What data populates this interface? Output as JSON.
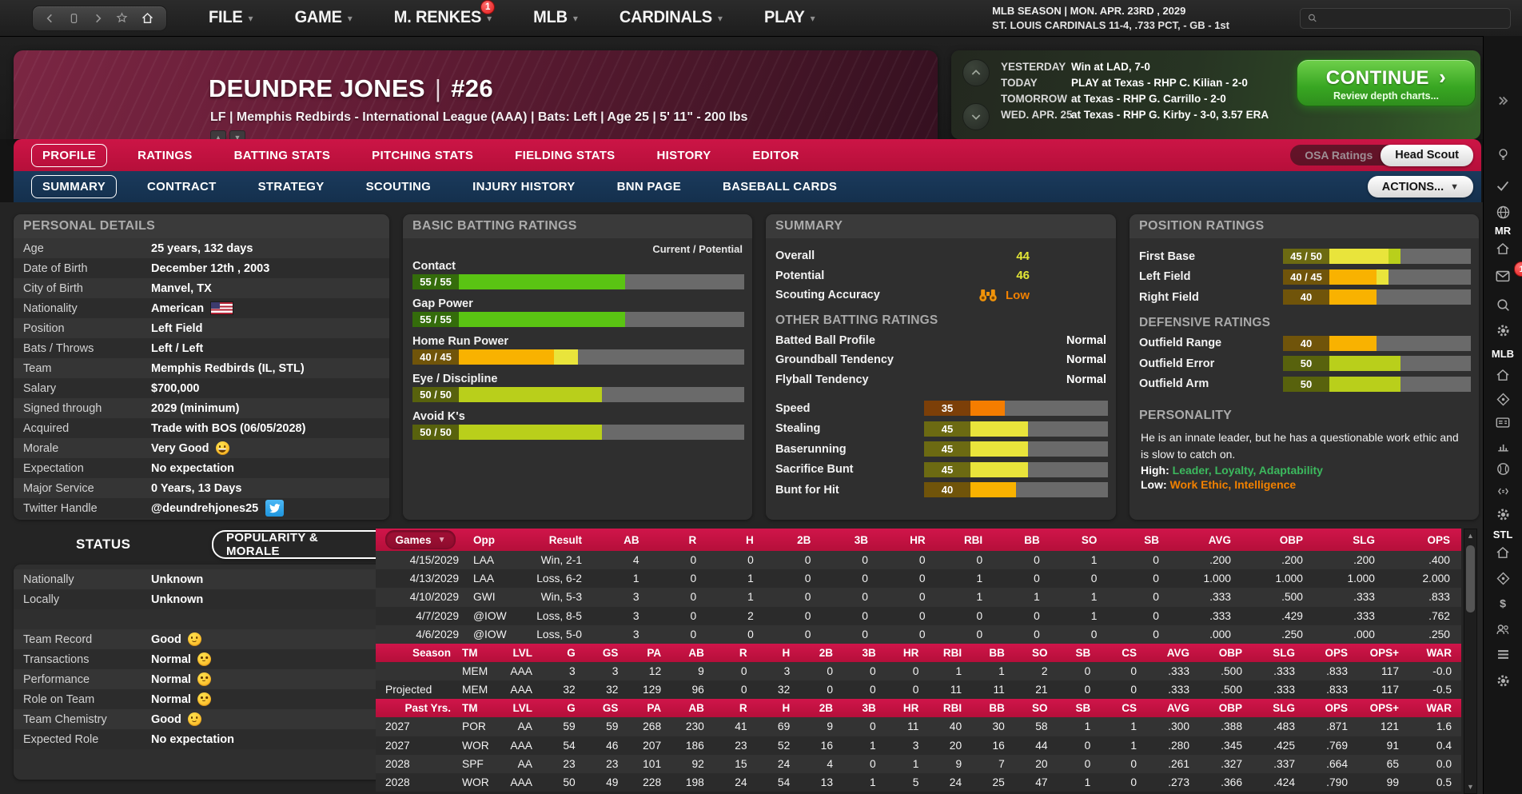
{
  "topbar": {
    "menus": [
      {
        "label": "FILE"
      },
      {
        "label": "GAME"
      },
      {
        "label": "M. RENKES",
        "badge": "1"
      },
      {
        "label": "MLB"
      },
      {
        "label": "CARDINALS"
      },
      {
        "label": "PLAY"
      }
    ],
    "season_line": "MLB SEASON  |  MON. APR. 23RD , 2029",
    "team_line": "ST. LOUIS CARDINALS  11-4, .733 PCT, - GB - 1st"
  },
  "player": {
    "name": "DEUNDRE JONES",
    "separator": "|",
    "number": "#26",
    "details": "LF | Memphis Redbirds - International League (AAA)  |  Bats: Left  |  Age 25  |  5' 11\" - 200 lbs"
  },
  "schedule": {
    "rows": [
      {
        "label": "YESTERDAY",
        "value": "Win at LAD, 7-0"
      },
      {
        "label": "TODAY",
        "value": "PLAY at Texas - RHP C. Kilian - 2-0"
      },
      {
        "label": "TOMORROW",
        "value": "at Texas - RHP G. Carrillo - 2-0"
      },
      {
        "label": "WED. APR. 25",
        "value": "at Texas - RHP G. Kirby - 3-0, 3.57 ERA"
      }
    ],
    "continue_label": "CONTINUE",
    "continue_arrow": "›",
    "continue_sub": "Review depth charts..."
  },
  "tabs_primary": [
    {
      "label": "PROFILE",
      "state": "active"
    },
    {
      "label": "RATINGS"
    },
    {
      "label": "BATTING STATS"
    },
    {
      "label": "PITCHING STATS"
    },
    {
      "label": "FIELDING STATS"
    },
    {
      "label": "HISTORY"
    },
    {
      "label": "EDITOR"
    }
  ],
  "scout_toggle": {
    "osa": "OSA Ratings",
    "head": "Head Scout"
  },
  "tabs_secondary": [
    {
      "label": "SUMMARY",
      "state": "active"
    },
    {
      "label": "CONTRACT"
    },
    {
      "label": "STRATEGY"
    },
    {
      "label": "SCOUTING"
    },
    {
      "label": "INJURY HISTORY"
    },
    {
      "label": "BNN PAGE"
    },
    {
      "label": "BASEBALL CARDS"
    }
  ],
  "actions_label": "ACTIONS...",
  "personal": {
    "title": "PERSONAL DETAILS",
    "rows": [
      {
        "label": "Age",
        "value": "25 years, 132 days",
        "cls": "a"
      },
      {
        "label": "Date of Birth",
        "value": "December 12th , 2003",
        "cls": "b"
      },
      {
        "label": "City of Birth",
        "value": "Manvel, TX",
        "cls": "a"
      },
      {
        "label": "Nationality",
        "value": "American",
        "icon": "us-flag",
        "cls": "b"
      },
      {
        "label": "Position",
        "value": "Left Field",
        "cls": "a"
      },
      {
        "label": "Bats / Throws",
        "value": "Left / Left",
        "cls": "b"
      },
      {
        "label": "Team",
        "value": "Memphis Redbirds (IL, STL)",
        "cls": "a"
      },
      {
        "label": "Salary",
        "value": "$700,000",
        "cls": "b"
      },
      {
        "label": "Signed through",
        "value": "2029 (minimum)",
        "cls": "a"
      },
      {
        "label": "Acquired",
        "value": "Trade with BOS (06/05/2028)",
        "cls": "b"
      },
      {
        "label": "Morale",
        "value": "Very Good",
        "emoji": "grin",
        "cls": "a"
      },
      {
        "label": "Expectation",
        "value": "No expectation",
        "cls": "b"
      },
      {
        "label": "Major Service",
        "value": "0 Years, 13 Days",
        "cls": "a"
      },
      {
        "label": "Twitter Handle",
        "value": "@deundrehjones25",
        "icon": "twitter",
        "cls": "b"
      }
    ]
  },
  "status": {
    "title": "STATUS",
    "popularity_label": "POPULARITY & MORALE",
    "rows": [
      {
        "label": "Nationally",
        "value": "Unknown",
        "cls": "a"
      },
      {
        "label": "Locally",
        "value": "Unknown",
        "cls": "b"
      },
      {
        "label": "",
        "value": "",
        "cls": "sp"
      },
      {
        "label": "Team Record",
        "value": "Good",
        "emoji": "smile",
        "cls": "a"
      },
      {
        "label": "Transactions",
        "value": "Normal",
        "emoji": "slight",
        "cls": "b"
      },
      {
        "label": "Performance",
        "value": "Normal",
        "emoji": "slight",
        "cls": "a"
      },
      {
        "label": "Role on Team",
        "value": "Normal",
        "emoji": "slight",
        "cls": "b"
      },
      {
        "label": "Team Chemistry",
        "value": "Good",
        "emoji": "smile",
        "cls": "a"
      },
      {
        "label": "Expected Role",
        "value": "No expectation",
        "cls": "b"
      }
    ]
  },
  "batting": {
    "title": "BASIC BATTING RATINGS",
    "scale_note": "Current / Potential",
    "items": [
      {
        "label": "Contact",
        "display": "55 / 55",
        "current": 55,
        "potential": 55
      },
      {
        "label": "Gap Power",
        "display": "55 / 55",
        "current": 55,
        "potential": 55
      },
      {
        "label": "Home Run Power",
        "display": "40 / 45",
        "current": 40,
        "potential": 45
      },
      {
        "label": "Eye / Discipline",
        "display": "50 / 50",
        "current": 50,
        "potential": 50
      },
      {
        "label": "Avoid K's",
        "display": "50 / 50",
        "current": 50,
        "potential": 50
      }
    ]
  },
  "summary": {
    "title": "SUMMARY",
    "scalars": [
      {
        "label": "Overall",
        "value": "44"
      },
      {
        "label": "Potential",
        "value": "46"
      }
    ],
    "scouting_label": "Scouting Accuracy",
    "scouting_value": "Low",
    "other_title": "OTHER BATTING RATINGS",
    "tendencies": [
      {
        "label": "Batted Ball Profile",
        "value": "Normal"
      },
      {
        "label": "Groundball Tendency",
        "value": "Normal"
      },
      {
        "label": "Flyball Tendency",
        "value": "Normal"
      }
    ],
    "run_ratings": [
      {
        "label": "Speed",
        "display": "35",
        "current": 35,
        "potential": 35
      },
      {
        "label": "Stealing",
        "display": "45",
        "current": 45,
        "potential": 45
      },
      {
        "label": "Baserunning",
        "display": "45",
        "current": 45,
        "potential": 45
      },
      {
        "label": "Sacrifice Bunt",
        "display": "45",
        "current": 45,
        "potential": 45
      },
      {
        "label": "Bunt for Hit",
        "display": "40",
        "current": 40,
        "potential": 40
      }
    ]
  },
  "positions": {
    "title": "POSITION RATINGS",
    "items": [
      {
        "label": "First Base",
        "display": "45 / 50",
        "current": 45,
        "potential": 50
      },
      {
        "label": "Left Field",
        "display": "40 / 45",
        "current": 40,
        "potential": 45
      },
      {
        "label": "Right Field",
        "display": "40",
        "current": 40,
        "potential": 40
      }
    ],
    "def_title": "DEFENSIVE RATINGS",
    "defense": [
      {
        "label": "Outfield Range",
        "display": "40",
        "current": 40,
        "potential": 40
      },
      {
        "label": "Outfield Error",
        "display": "50",
        "current": 50,
        "potential": 50
      },
      {
        "label": "Outfield Arm",
        "display": "50",
        "current": 50,
        "potential": 50
      }
    ],
    "personality_title": "PERSONALITY",
    "personality_text": "He is an innate leader, but he has a questionable work ethic and is slow to catch on.",
    "high_label": "High:",
    "high_value": "Leader, Loyalty, Adaptability",
    "low_label": "Low:",
    "low_value": "Work Ethic, Intelligence"
  },
  "games_table": {
    "dropdown_label": "Games",
    "headers": [
      "Opp",
      "Result",
      "AB",
      "R",
      "H",
      "2B",
      "3B",
      "HR",
      "RBI",
      "BB",
      "SO",
      "SB",
      "AVG",
      "OBP",
      "SLG",
      "OPS"
    ],
    "rows": [
      [
        "4/15/2029",
        "LAA",
        "Win, 2-1",
        "4",
        "0",
        "0",
        "0",
        "0",
        "0",
        "0",
        "0",
        "1",
        "0",
        ".200",
        ".200",
        ".200",
        ".400"
      ],
      [
        "4/13/2029",
        "LAA",
        "Loss, 6-2",
        "1",
        "0",
        "1",
        "0",
        "0",
        "0",
        "1",
        "0",
        "0",
        "0",
        "1.000",
        "1.000",
        "1.000",
        "2.000"
      ],
      [
        "4/10/2029",
        "GWI",
        "Win, 5-3",
        "3",
        "0",
        "1",
        "0",
        "0",
        "0",
        "1",
        "1",
        "1",
        "0",
        ".333",
        ".500",
        ".333",
        ".833"
      ],
      [
        "4/7/2029",
        "@IOW",
        "Loss, 8-5",
        "3",
        "0",
        "2",
        "0",
        "0",
        "0",
        "0",
        "0",
        "1",
        "0",
        ".333",
        ".429",
        ".333",
        ".762"
      ],
      [
        "4/6/2029",
        "@IOW",
        "Loss, 5-0",
        "3",
        "0",
        "0",
        "0",
        "0",
        "0",
        "0",
        "0",
        "0",
        "0",
        ".000",
        ".250",
        ".000",
        ".250"
      ]
    ]
  },
  "season_table": {
    "label": "Season",
    "headers": [
      "TM",
      "LVL",
      "G",
      "GS",
      "PA",
      "AB",
      "R",
      "H",
      "2B",
      "3B",
      "HR",
      "RBI",
      "BB",
      "SO",
      "SB",
      "CS",
      "AVG",
      "OBP",
      "SLG",
      "OPS",
      "OPS+",
      "WAR"
    ],
    "rows": [
      [
        "",
        "MEM",
        "AAA",
        "3",
        "3",
        "12",
        "9",
        "0",
        "3",
        "0",
        "0",
        "0",
        "1",
        "1",
        "2",
        "0",
        "0",
        ".333",
        ".500",
        ".333",
        ".833",
        "117",
        "-0.0"
      ],
      [
        "Projected",
        "MEM",
        "AAA",
        "32",
        "32",
        "129",
        "96",
        "0",
        "32",
        "0",
        "0",
        "0",
        "11",
        "11",
        "21",
        "0",
        "0",
        ".333",
        ".500",
        ".333",
        ".833",
        "117",
        "-0.5"
      ]
    ]
  },
  "past_table": {
    "label": "Past Yrs.",
    "headers": [
      "TM",
      "LVL",
      "G",
      "GS",
      "PA",
      "AB",
      "R",
      "H",
      "2B",
      "3B",
      "HR",
      "RBI",
      "BB",
      "SO",
      "SB",
      "CS",
      "AVG",
      "OBP",
      "SLG",
      "OPS",
      "OPS+",
      "WAR"
    ],
    "rows": [
      [
        "2027",
        "POR",
        "AA",
        "59",
        "59",
        "268",
        "230",
        "41",
        "69",
        "9",
        "0",
        "11",
        "40",
        "30",
        "58",
        "1",
        "1",
        ".300",
        ".388",
        ".483",
        ".871",
        "121",
        "1.6"
      ],
      [
        "2027",
        "WOR",
        "AAA",
        "54",
        "46",
        "207",
        "186",
        "23",
        "52",
        "16",
        "1",
        "3",
        "20",
        "16",
        "44",
        "0",
        "1",
        ".280",
        ".345",
        ".425",
        ".769",
        "91",
        "0.4"
      ],
      [
        "2028",
        "SPF",
        "AA",
        "23",
        "23",
        "101",
        "92",
        "15",
        "24",
        "4",
        "0",
        "1",
        "9",
        "7",
        "20",
        "0",
        "0",
        ".261",
        ".327",
        ".337",
        ".664",
        "65",
        "0.0"
      ],
      [
        "2028",
        "WOR",
        "AAA",
        "50",
        "49",
        "228",
        "198",
        "24",
        "54",
        "13",
        "1",
        "5",
        "24",
        "25",
        "47",
        "1",
        "0",
        ".273",
        ".366",
        ".424",
        ".790",
        "99",
        "0.5"
      ]
    ]
  },
  "sidebar": {
    "labels": [
      "MR",
      "MLB",
      "STL"
    ],
    "inbox_badge": "1",
    "icons": [
      "expand-icon",
      "idea-icon",
      "tasks-icon",
      "website-icon",
      "home-icon",
      "inbox-icon",
      "search-icon",
      "settings-icon",
      "league-home-icon",
      "scores-icon",
      "standings-icon",
      "stats-icon",
      "scoreboard-icon",
      "transactions-icon",
      "league-settings-icon",
      "team-home-icon",
      "team-scores-icon",
      "finance-icon",
      "roster-icon",
      "depth-chart-icon",
      "team-settings-icon"
    ]
  },
  "colors": {
    "accent_red": "#c21240",
    "accent_navy": "#17324f",
    "continue_green": "#3aa823",
    "header_burgundy": "#6d2038",
    "rating_green": "#5ac413",
    "rating_chartreuse": "#b9cf1b",
    "rating_yellow": "#e9e43b",
    "rating_amber": "#f9b200",
    "rating_orange": "#f57d00",
    "low_orange": "#f08000",
    "high_green": "#3cb95e"
  }
}
